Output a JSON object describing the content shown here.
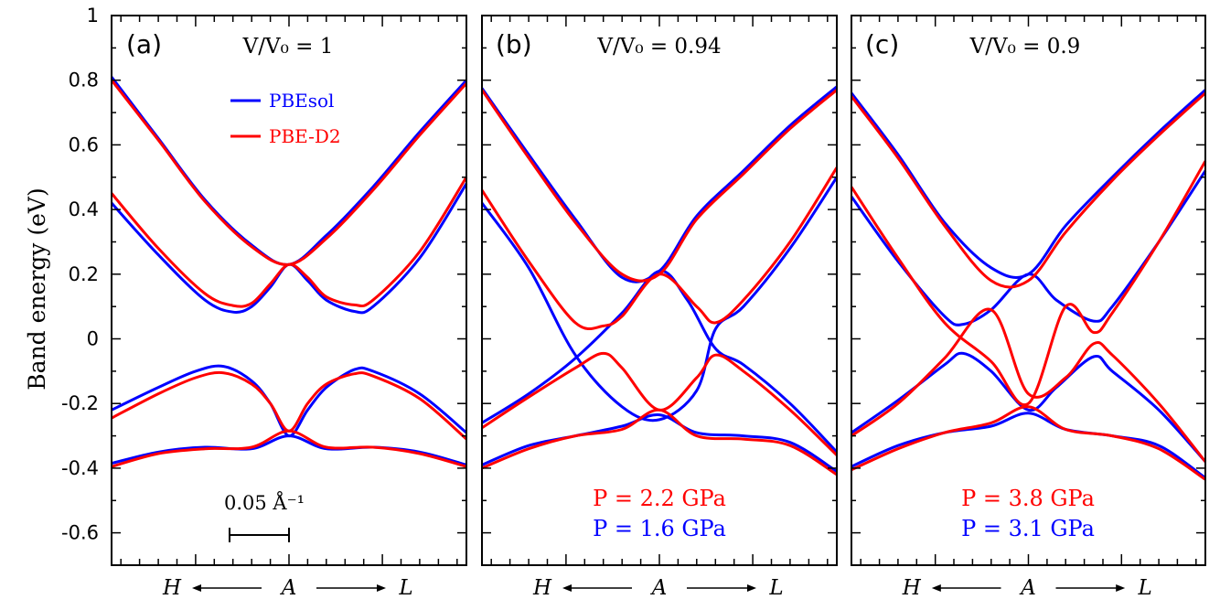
{
  "colors": {
    "pbesol": "#0000ff",
    "pbed2": "#ff0000",
    "axis": "#000000"
  },
  "chart_data": {
    "type": "line",
    "ylabel": "Band energy (eV)",
    "ylim": [
      -0.7,
      1.0
    ],
    "yticks": [
      -0.6,
      -0.4,
      -0.2,
      0,
      0.2,
      0.4,
      0.6,
      0.8,
      1
    ],
    "ytick_labels": [
      "-0.6",
      "-0.4",
      "-0.2",
      "0",
      "0.2",
      "0.4",
      "0.6",
      "0.8",
      "1"
    ],
    "x_range_inv_angstrom": [
      -0.095,
      0.095
    ],
    "x_labels": {
      "left": "H",
      "center": "A",
      "right": "L"
    },
    "scale_bar": {
      "label": "0.05 Å⁻¹",
      "length": 0.05,
      "from": -0.05,
      "to": 0
    },
    "legend": [
      {
        "name": "PBEsol",
        "color": "#0000ff"
      },
      {
        "name": "PBE-D2",
        "color": "#ff0000"
      }
    ],
    "panels": [
      {
        "id": "a",
        "label": "(a)",
        "volume_label": "V/V₀ = 1",
        "pressures": [],
        "series": [
          {
            "name": "PBEsol",
            "bands": [
              {
                "x": [
                  -0.095,
                  -0.07,
                  -0.045,
                  -0.02,
                  0,
                  0.02,
                  0.045,
                  0.07,
                  0.095
                ],
                "y": [
                  0.81,
                  0.62,
                  0.43,
                  0.29,
                  0.23,
                  0.32,
                  0.47,
                  0.64,
                  0.8
                ]
              },
              {
                "x": [
                  -0.095,
                  -0.07,
                  -0.045,
                  -0.03,
                  -0.02,
                  -0.01,
                  0,
                  0.01,
                  0.02,
                  0.035,
                  0.045,
                  0.07,
                  0.095
                ],
                "y": [
                  0.42,
                  0.26,
                  0.12,
                  0.083,
                  0.1,
                  0.16,
                  0.23,
                  0.18,
                  0.12,
                  0.085,
                  0.1,
                  0.25,
                  0.48
                ]
              },
              {
                "x": [
                  -0.095,
                  -0.07,
                  -0.05,
                  -0.035,
                  -0.02,
                  -0.01,
                  0,
                  0.01,
                  0.02,
                  0.035,
                  0.045,
                  0.07,
                  0.095
                ],
                "y": [
                  -0.22,
                  -0.15,
                  -0.1,
                  -0.085,
                  -0.13,
                  -0.2,
                  -0.3,
                  -0.22,
                  -0.15,
                  -0.095,
                  -0.1,
                  -0.17,
                  -0.29
                ]
              },
              {
                "x": [
                  -0.095,
                  -0.07,
                  -0.045,
                  -0.02,
                  0,
                  0.02,
                  0.045,
                  0.07,
                  0.095
                ],
                "y": [
                  -0.385,
                  -0.35,
                  -0.335,
                  -0.34,
                  -0.3,
                  -0.34,
                  -0.335,
                  -0.35,
                  -0.39
                ]
              }
            ]
          },
          {
            "name": "PBE-D2",
            "bands": [
              {
                "x": [
                  -0.095,
                  -0.07,
                  -0.045,
                  -0.02,
                  0,
                  0.02,
                  0.045,
                  0.07,
                  0.095
                ],
                "y": [
                  0.8,
                  0.615,
                  0.425,
                  0.285,
                  0.23,
                  0.31,
                  0.46,
                  0.63,
                  0.79
                ]
              },
              {
                "x": [
                  -0.095,
                  -0.07,
                  -0.045,
                  -0.03,
                  -0.02,
                  -0.01,
                  0,
                  0.01,
                  0.02,
                  0.035,
                  0.045,
                  0.07,
                  0.095
                ],
                "y": [
                  0.45,
                  0.28,
                  0.14,
                  0.103,
                  0.11,
                  0.17,
                  0.23,
                  0.19,
                  0.13,
                  0.105,
                  0.12,
                  0.27,
                  0.5
                ]
              },
              {
                "x": [
                  -0.095,
                  -0.07,
                  -0.05,
                  -0.035,
                  -0.02,
                  -0.01,
                  0,
                  0.01,
                  0.02,
                  0.035,
                  0.045,
                  0.07,
                  0.095
                ],
                "y": [
                  -0.245,
                  -0.17,
                  -0.12,
                  -0.105,
                  -0.14,
                  -0.2,
                  -0.285,
                  -0.2,
                  -0.14,
                  -0.108,
                  -0.115,
                  -0.185,
                  -0.31
                ]
              },
              {
                "x": [
                  -0.095,
                  -0.07,
                  -0.045,
                  -0.02,
                  0,
                  0.02,
                  0.045,
                  0.07,
                  0.095
                ],
                "y": [
                  -0.395,
                  -0.355,
                  -0.34,
                  -0.335,
                  -0.285,
                  -0.335,
                  -0.335,
                  -0.355,
                  -0.395
                ]
              }
            ]
          }
        ]
      },
      {
        "id": "b",
        "label": "(b)",
        "volume_label": "V/V₀ = 0.94",
        "pressures": [
          {
            "text": "P = 2.2 GPa",
            "color": "#ff0000"
          },
          {
            "text": "P = 1.6 GPa",
            "color": "#0000ff"
          }
        ],
        "series": [
          {
            "name": "PBEsol",
            "bands": [
              {
                "x": [
                  -0.095,
                  -0.07,
                  -0.045,
                  -0.02,
                  0,
                  0.02,
                  0.045,
                  0.07,
                  0.095
                ],
                "y": [
                  0.775,
                  0.57,
                  0.37,
                  0.19,
                  0.21,
                  0.38,
                  0.52,
                  0.66,
                  0.78
                ]
              },
              {
                "x": [
                  -0.095,
                  -0.07,
                  -0.045,
                  -0.02,
                  0,
                  0.02,
                  0.03,
                  0.045,
                  0.07,
                  0.095
                ],
                "y": [
                  0.42,
                  0.22,
                  -0.05,
                  -0.21,
                  -0.25,
                  -0.16,
                  0.03,
                  0.1,
                  0.28,
                  0.5
                ]
              },
              {
                "x": [
                  -0.095,
                  -0.07,
                  -0.045,
                  -0.02,
                  0,
                  0.015,
                  0.03,
                  0.045,
                  0.07,
                  0.095
                ],
                "y": [
                  -0.26,
                  -0.17,
                  -0.06,
                  0.08,
                  0.21,
                  0.12,
                  -0.03,
                  -0.08,
                  -0.2,
                  -0.35
                ]
              },
              {
                "x": [
                  -0.095,
                  -0.07,
                  -0.045,
                  -0.02,
                  0,
                  0.02,
                  0.045,
                  0.07,
                  0.095
                ],
                "y": [
                  -0.39,
                  -0.33,
                  -0.3,
                  -0.27,
                  -0.235,
                  -0.29,
                  -0.3,
                  -0.32,
                  -0.41
                ]
              }
            ]
          },
          {
            "name": "PBE-D2",
            "bands": [
              {
                "x": [
                  -0.095,
                  -0.07,
                  -0.045,
                  -0.02,
                  0,
                  0.02,
                  0.045,
                  0.07,
                  0.095
                ],
                "y": [
                  0.77,
                  0.56,
                  0.36,
                  0.2,
                  0.2,
                  0.37,
                  0.51,
                  0.65,
                  0.77
                ]
              },
              {
                "x": [
                  -0.095,
                  -0.07,
                  -0.045,
                  -0.03,
                  -0.02,
                  0,
                  0.02,
                  0.03,
                  0.045,
                  0.07,
                  0.095
                ],
                "y": [
                  0.46,
                  0.24,
                  0.05,
                  0.04,
                  0.07,
                  0.2,
                  0.1,
                  0.05,
                  0.12,
                  0.3,
                  0.53
                ]
              },
              {
                "x": [
                  -0.095,
                  -0.07,
                  -0.045,
                  -0.03,
                  -0.02,
                  0,
                  0.02,
                  0.03,
                  0.045,
                  0.07,
                  0.095
                ],
                "y": [
                  -0.275,
                  -0.18,
                  -0.09,
                  -0.045,
                  -0.09,
                  -0.22,
                  -0.12,
                  -0.05,
                  -0.1,
                  -0.22,
                  -0.36
                ]
              },
              {
                "x": [
                  -0.095,
                  -0.07,
                  -0.045,
                  -0.02,
                  0,
                  0.02,
                  0.045,
                  0.07,
                  0.095
                ],
                "y": [
                  -0.4,
                  -0.34,
                  -0.3,
                  -0.28,
                  -0.22,
                  -0.3,
                  -0.31,
                  -0.33,
                  -0.42
                ]
              }
            ]
          }
        ]
      },
      {
        "id": "c",
        "label": "(c)",
        "volume_label": "V/V₀ = 0.9",
        "pressures": [
          {
            "text": "P = 3.8 GPa",
            "color": "#ff0000"
          },
          {
            "text": "P = 3.1 GPa",
            "color": "#0000ff"
          }
        ],
        "series": [
          {
            "name": "PBEsol",
            "bands": [
              {
                "x": [
                  -0.095,
                  -0.07,
                  -0.045,
                  -0.02,
                  0,
                  0.02,
                  0.045,
                  0.07,
                  0.095
                ],
                "y": [
                  0.76,
                  0.57,
                  0.36,
                  0.22,
                  0.2,
                  0.35,
                  0.5,
                  0.64,
                  0.77
                ]
              },
              {
                "x": [
                  -0.095,
                  -0.07,
                  -0.045,
                  -0.035,
                  -0.02,
                  0,
                  0.015,
                  0.035,
                  0.045,
                  0.07,
                  0.095
                ],
                "y": [
                  0.44,
                  0.24,
                  0.07,
                  0.045,
                  0.09,
                  0.2,
                  0.12,
                  0.055,
                  0.1,
                  0.3,
                  0.52
                ]
              },
              {
                "x": [
                  -0.095,
                  -0.07,
                  -0.045,
                  -0.035,
                  -0.02,
                  0,
                  0.015,
                  0.035,
                  0.045,
                  0.07,
                  0.095
                ],
                "y": [
                  -0.29,
                  -0.19,
                  -0.08,
                  -0.045,
                  -0.1,
                  -0.22,
                  -0.15,
                  -0.055,
                  -0.1,
                  -0.22,
                  -0.38
                ]
              },
              {
                "x": [
                  -0.095,
                  -0.07,
                  -0.045,
                  -0.02,
                  0,
                  0.02,
                  0.045,
                  0.07,
                  0.095
                ],
                "y": [
                  -0.395,
                  -0.33,
                  -0.29,
                  -0.27,
                  -0.23,
                  -0.28,
                  -0.3,
                  -0.33,
                  -0.43
                ]
              }
            ]
          },
          {
            "name": "PBE-D2",
            "bands": [
              {
                "x": [
                  -0.095,
                  -0.07,
                  -0.045,
                  -0.02,
                  0,
                  0.02,
                  0.045,
                  0.07,
                  0.095
                ],
                "y": [
                  0.75,
                  0.56,
                  0.35,
                  0.18,
                  0.18,
                  0.33,
                  0.49,
                  0.63,
                  0.76
                ]
              },
              {
                "x": [
                  -0.095,
                  -0.07,
                  -0.045,
                  -0.02,
                  0,
                  0.02,
                  0.035,
                  0.045,
                  0.07,
                  0.095
                ],
                "y": [
                  0.47,
                  0.25,
                  0.05,
                  -0.07,
                  -0.2,
                  0.1,
                  0.02,
                  0.08,
                  0.3,
                  0.55
                ]
              },
              {
                "x": [
                  -0.095,
                  -0.07,
                  -0.045,
                  -0.02,
                  0,
                  0.02,
                  0.035,
                  0.045,
                  0.07,
                  0.095
                ],
                "y": [
                  -0.3,
                  -0.2,
                  -0.06,
                  0.09,
                  -0.17,
                  -0.12,
                  -0.015,
                  -0.05,
                  -0.2,
                  -0.38
                ]
              },
              {
                "x": [
                  -0.095,
                  -0.07,
                  -0.045,
                  -0.02,
                  0,
                  0.02,
                  0.045,
                  0.07,
                  0.095
                ],
                "y": [
                  -0.405,
                  -0.34,
                  -0.29,
                  -0.26,
                  -0.21,
                  -0.28,
                  -0.3,
                  -0.34,
                  -0.435
                ]
              }
            ]
          }
        ]
      }
    ]
  }
}
